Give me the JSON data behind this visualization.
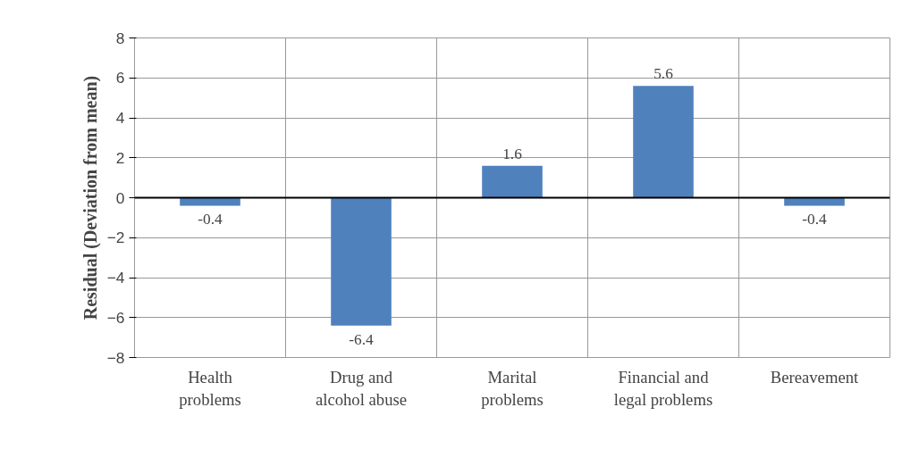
{
  "chart_data": {
    "type": "bar",
    "ylabel": "Residual (Deviation from mean)",
    "categories": [
      "Health problems",
      "Drug and alcohol abuse",
      "Marital problems",
      "Financial and legal problems",
      "Bereavement"
    ],
    "values": [
      -0.4,
      -6.4,
      1.6,
      5.6,
      -0.4
    ],
    "color": "#4f81bd",
    "ylim": [
      -8,
      8
    ],
    "yticks": [
      -8,
      -6,
      -4,
      -2,
      0,
      2,
      4,
      6,
      8
    ],
    "grid": true,
    "data_labels": true
  }
}
